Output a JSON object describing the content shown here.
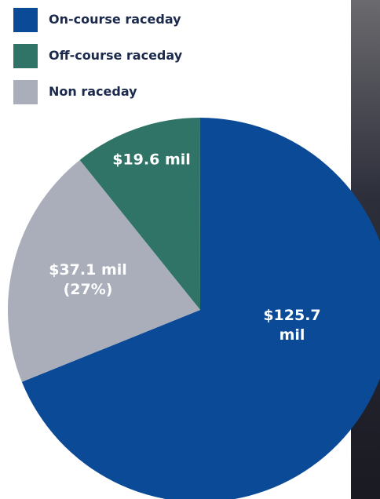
{
  "chart_data": {
    "type": "pie",
    "categories": [
      "On-course raceday",
      "Off-course raceday",
      "Non raceday"
    ],
    "values": [
      125.7,
      19.6,
      37.1
    ],
    "value_labels": [
      "$125.7 mil",
      "$19.6 mil",
      "$37.1 mil\n(27%)"
    ],
    "colors": [
      "#0b4a97",
      "#2f7467",
      "#a9aeba"
    ]
  }
}
